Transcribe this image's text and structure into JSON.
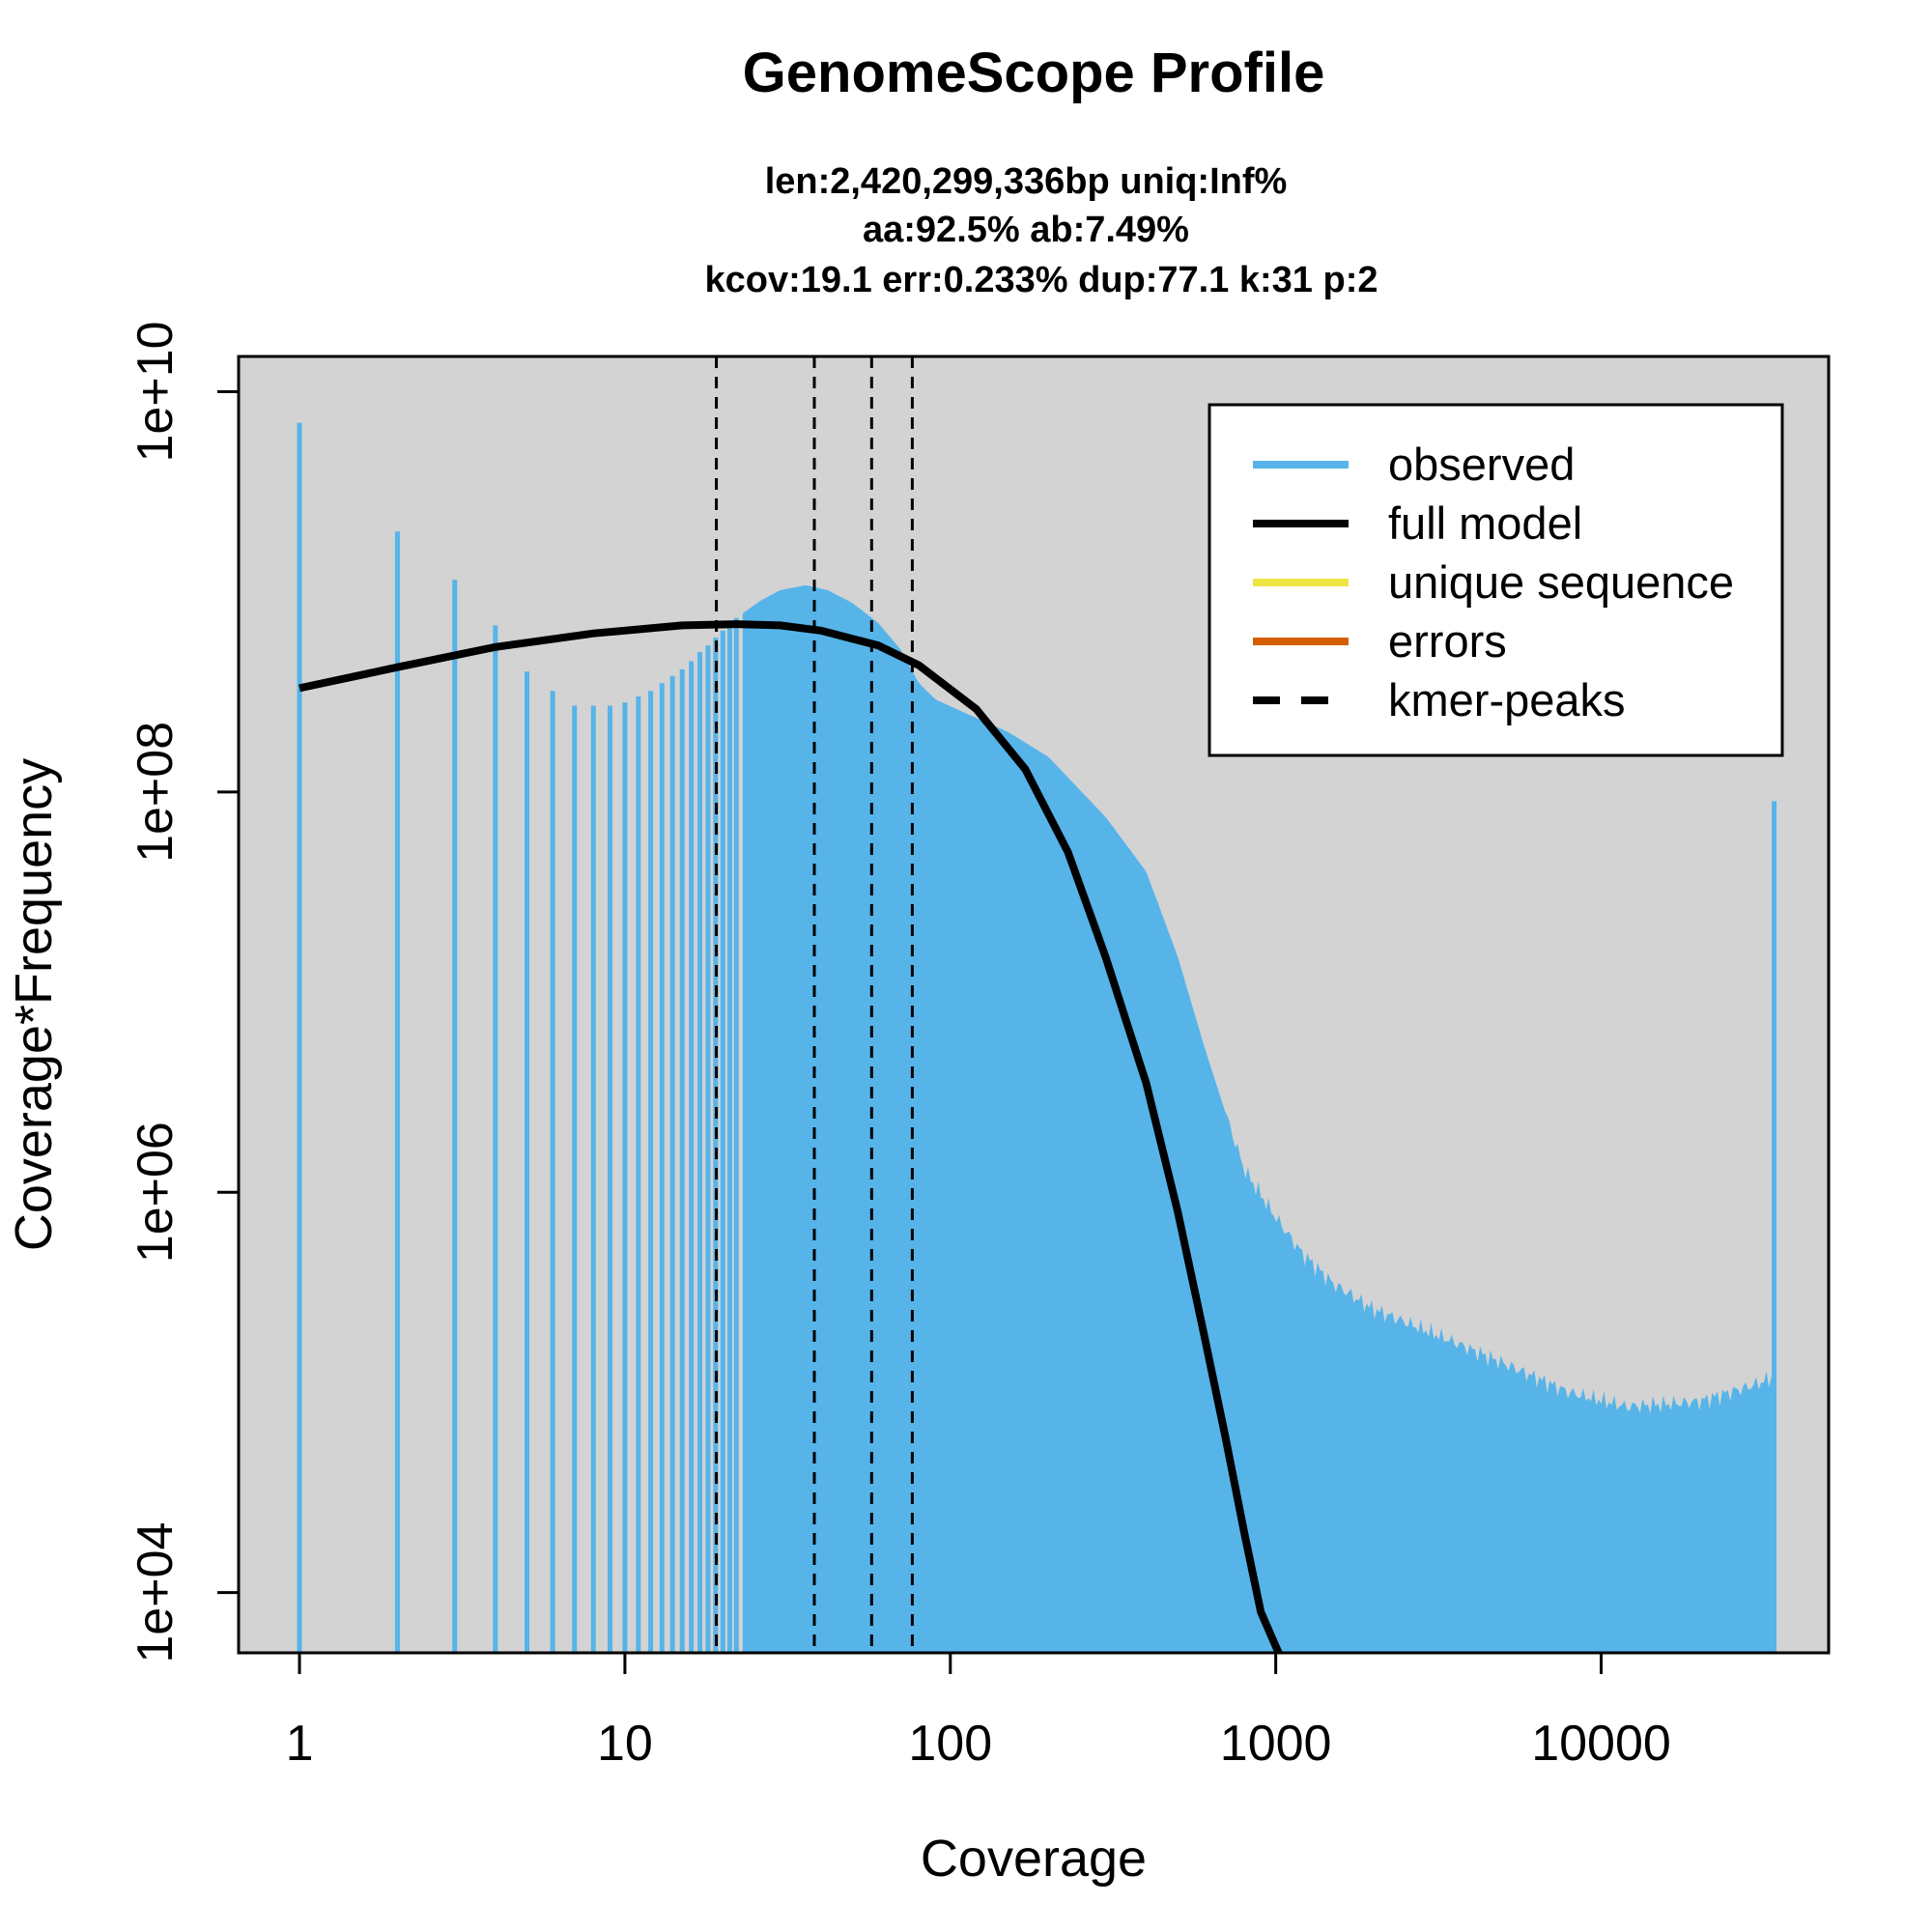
{
  "chart_data": {
    "type": "bar",
    "title": "GenomeScope Profile",
    "subtitle_lines": [
      "len:2,420,299,336bp uniq:Inf%",
      "aa:92.5% ab:7.49%",
      "kcov:19.1 err:0.233%  dup:77.1  k:31 p:2"
    ],
    "xlabel": "Coverage",
    "ylabel": "Coverage*Frequency",
    "x_scale": "log",
    "y_scale": "log",
    "xlim": [
      0.65,
      50000
    ],
    "ylim": [
      5000,
      15000000000
    ],
    "x_ticks": [
      {
        "value": 1,
        "label": "1"
      },
      {
        "value": 10,
        "label": "10"
      },
      {
        "value": 100,
        "label": "100"
      },
      {
        "value": 1000,
        "label": "1000"
      },
      {
        "value": 10000,
        "label": "10000"
      }
    ],
    "y_ticks": [
      {
        "value": 10000,
        "label": "1e+04"
      },
      {
        "value": 1000000,
        "label": "1e+06"
      },
      {
        "value": 100000000,
        "label": "1e+08"
      },
      {
        "value": 10000000000,
        "label": "1e+10"
      }
    ],
    "grid": false,
    "plot_background": "#d3d3d3",
    "legend_position": "top-right",
    "series": [
      {
        "name": "observed",
        "color": "#56b4e9",
        "style": "histogram",
        "discrete_points": [
          {
            "x": 1,
            "y": 7000000000
          },
          {
            "x": 2,
            "y": 2000000000
          },
          {
            "x": 3,
            "y": 1150000000
          },
          {
            "x": 4,
            "y": 680000000
          },
          {
            "x": 5,
            "y": 400000000
          },
          {
            "x": 6,
            "y": 320000000
          },
          {
            "x": 7,
            "y": 270000000
          },
          {
            "x": 8,
            "y": 270000000
          },
          {
            "x": 9,
            "y": 270000000
          },
          {
            "x": 10,
            "y": 280000000
          },
          {
            "x": 11,
            "y": 300000000
          },
          {
            "x": 12,
            "y": 320000000
          },
          {
            "x": 13,
            "y": 350000000
          },
          {
            "x": 14,
            "y": 380000000
          },
          {
            "x": 15,
            "y": 410000000
          },
          {
            "x": 16,
            "y": 450000000
          },
          {
            "x": 17,
            "y": 500000000
          },
          {
            "x": 18,
            "y": 540000000
          },
          {
            "x": 19,
            "y": 590000000
          },
          {
            "x": 20,
            "y": 640000000
          },
          {
            "x": 21,
            "y": 690000000
          },
          {
            "x": 22,
            "y": 740000000
          }
        ],
        "envelope": [
          {
            "x": 23,
            "y": 780000000
          },
          {
            "x": 26,
            "y": 900000000
          },
          {
            "x": 30,
            "y": 1020000000
          },
          {
            "x": 36,
            "y": 1080000000
          },
          {
            "x": 42,
            "y": 1020000000
          },
          {
            "x": 50,
            "y": 880000000
          },
          {
            "x": 60,
            "y": 700000000
          },
          {
            "x": 70,
            "y": 520000000
          },
          {
            "x": 80,
            "y": 350000000
          },
          {
            "x": 90,
            "y": 290000000
          },
          {
            "x": 110,
            "y": 250000000
          },
          {
            "x": 150,
            "y": 200000000
          },
          {
            "x": 200,
            "y": 150000000
          },
          {
            "x": 300,
            "y": 75000000
          },
          {
            "x": 400,
            "y": 40000000
          },
          {
            "x": 500,
            "y": 15000000
          },
          {
            "x": 600,
            "y": 5500000
          },
          {
            "x": 700,
            "y": 2500000
          },
          {
            "x": 800,
            "y": 1300000
          },
          {
            "x": 1000,
            "y": 750000
          },
          {
            "x": 1200,
            "y": 500000
          },
          {
            "x": 1500,
            "y": 350000
          },
          {
            "x": 2000,
            "y": 260000
          },
          {
            "x": 3000,
            "y": 200000
          },
          {
            "x": 5000,
            "y": 140000
          },
          {
            "x": 8000,
            "y": 100000
          },
          {
            "x": 12000,
            "y": 85000
          },
          {
            "x": 20000,
            "y": 90000
          },
          {
            "x": 30000,
            "y": 110000
          },
          {
            "x": 34000,
            "y": 120000
          }
        ],
        "spike": {
          "x": 34000,
          "y": 90000000
        }
      },
      {
        "name": "full model",
        "color": "#000000",
        "style": "line",
        "points": [
          {
            "x": 1,
            "y": 330000000
          },
          {
            "x": 2,
            "y": 420000000
          },
          {
            "x": 4,
            "y": 530000000
          },
          {
            "x": 8,
            "y": 620000000
          },
          {
            "x": 15,
            "y": 680000000
          },
          {
            "x": 22,
            "y": 690000000
          },
          {
            "x": 30,
            "y": 680000000
          },
          {
            "x": 40,
            "y": 640000000
          },
          {
            "x": 60,
            "y": 540000000
          },
          {
            "x": 80,
            "y": 430000000
          },
          {
            "x": 120,
            "y": 260000000
          },
          {
            "x": 170,
            "y": 130000000
          },
          {
            "x": 230,
            "y": 50000000
          },
          {
            "x": 300,
            "y": 15000000
          },
          {
            "x": 400,
            "y": 3500000
          },
          {
            "x": 500,
            "y": 800000
          },
          {
            "x": 600,
            "y": 200000
          },
          {
            "x": 700,
            "y": 60000
          },
          {
            "x": 800,
            "y": 20000
          },
          {
            "x": 900,
            "y": 8000
          },
          {
            "x": 1020,
            "y": 5000
          }
        ]
      },
      {
        "name": "unique sequence",
        "color": "#f0e442",
        "style": "line",
        "points": []
      },
      {
        "name": "errors",
        "color": "#d55e00",
        "style": "line",
        "points": []
      },
      {
        "name": "kmer-peaks",
        "color": "#000000",
        "style": "dashed-vline",
        "x_values": [
          19.1,
          38.2,
          57.3,
          76.4
        ]
      }
    ]
  }
}
